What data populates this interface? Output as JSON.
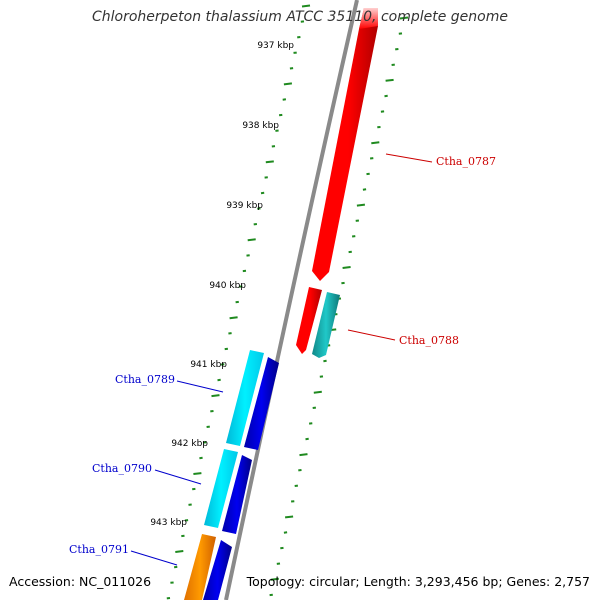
{
  "title": "Chloroherpeton thalassium ATCC 35110, complete genome",
  "footer": {
    "accession": "Accession: NC_011026",
    "topology": "Topology: circular; Length: 3,293,456 bp; Genes: 2,757"
  },
  "colors": {
    "backbone": "#8a8a8a",
    "ticks": "#1f8a1f",
    "label_forward": "#cc0000",
    "label_reverse": "#0000cc",
    "red": "#ff0000",
    "teal": "#20c8c8",
    "cyan": "#00e6ff",
    "blue": "#0000dd",
    "orange": "#ff9900"
  },
  "scale": {
    "unit": "kbp",
    "labels": [
      "937 kbp",
      "938 kbp",
      "939 kbp",
      "940 kbp",
      "941 kbp",
      "942 kbp",
      "943 kbp"
    ]
  },
  "genes": [
    {
      "label": "Ctha_0787",
      "strand": "forward"
    },
    {
      "label": "Ctha_0788",
      "strand": "forward"
    },
    {
      "label": "Ctha_0789",
      "strand": "reverse"
    },
    {
      "label": "Ctha_0790",
      "strand": "reverse"
    },
    {
      "label": "Ctha_0791",
      "strand": "reverse"
    }
  ]
}
